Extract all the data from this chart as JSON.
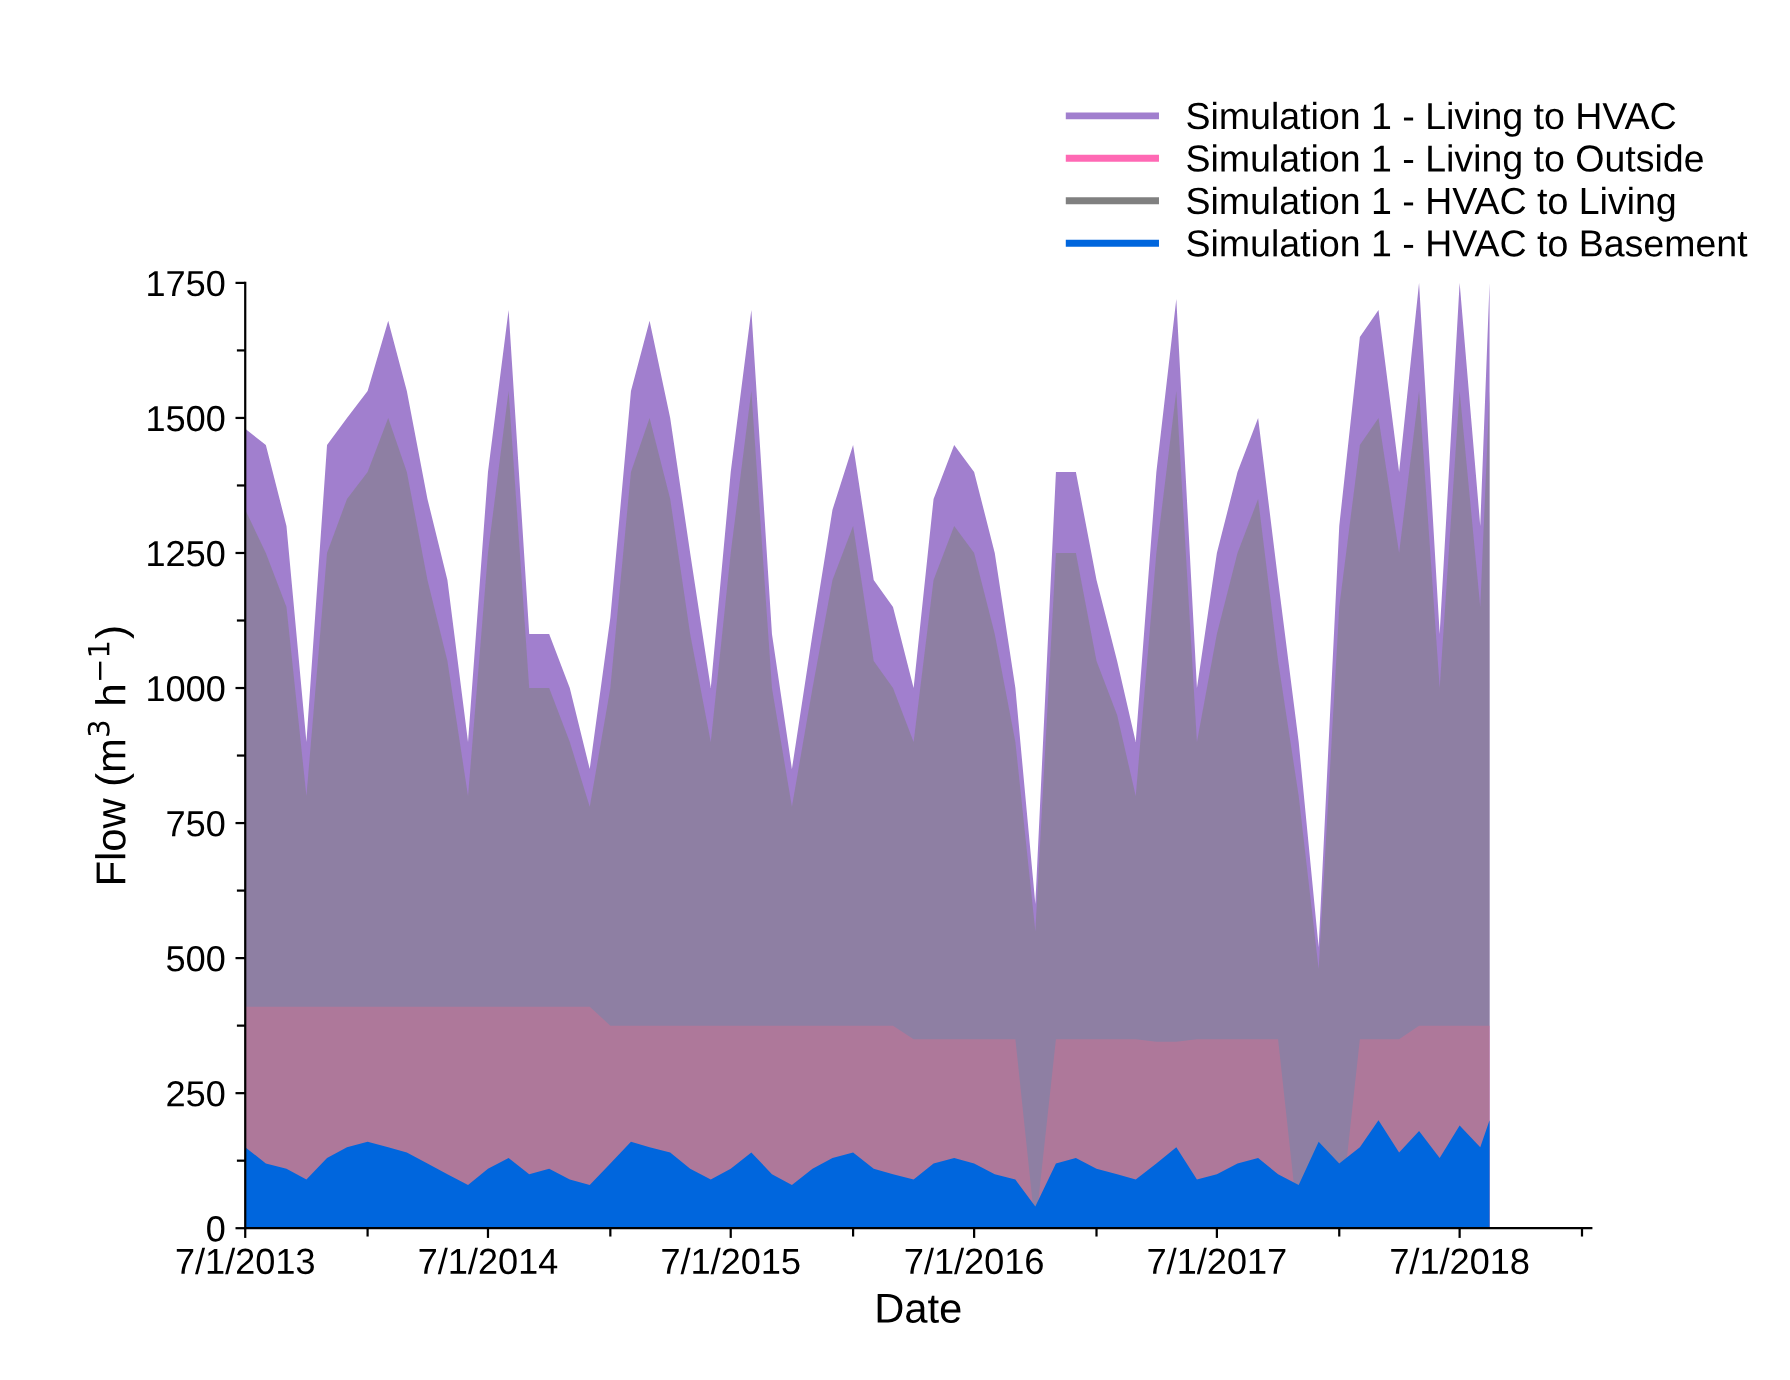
{
  "chart_data": {
    "type": "area",
    "xlabel": "Date",
    "ylabel": "Flow (m$^{3}$ h$^{−1}$)",
    "legend": "top right",
    "grid": false,
    "xlim": [
      "2013-07-01",
      "2019-01-15"
    ],
    "xticks": [
      {
        "value": "2013-07-01",
        "label": "7/1/2013"
      },
      {
        "value": "2014-01-01",
        "label": null
      },
      {
        "value": "2014-07-01",
        "label": "7/1/2014"
      },
      {
        "value": "2015-01-01",
        "label": null
      },
      {
        "value": "2015-07-01",
        "label": "7/1/2015"
      },
      {
        "value": "2016-01-01",
        "label": null
      },
      {
        "value": "2016-07-01",
        "label": "7/1/2016"
      },
      {
        "value": "2017-01-01",
        "label": null
      },
      {
        "value": "2017-07-01",
        "label": "7/1/2017"
      },
      {
        "value": "2018-01-01",
        "label": null
      },
      {
        "value": "2018-07-01",
        "label": "7/1/2018"
      },
      {
        "value": "2019-01-01",
        "label": null
      }
    ],
    "ylim": [
      0,
      1750
    ],
    "yticks": [
      0,
      {
        "value": 125,
        "label": null
      },
      250,
      {
        "value": 375,
        "label": null
      },
      500,
      {
        "value": 625,
        "label": null
      },
      750,
      {
        "value": 875,
        "label": null
      },
      1000,
      {
        "value": 1125,
        "label": null
      },
      1250,
      {
        "value": 1375,
        "label": null
      },
      1500,
      {
        "value": 1625,
        "label": null
      },
      1750
    ],
    "x": [
      "2013-07-01",
      "2013-08-01",
      "2013-09-01",
      "2013-10-01",
      "2013-11-01",
      "2013-12-01",
      "2014-01-01",
      "2014-02-01",
      "2014-03-01",
      "2014-04-01",
      "2014-05-01",
      "2014-06-01",
      "2014-07-01",
      "2014-08-01",
      "2014-09-01",
      "2014-10-01",
      "2014-11-01",
      "2014-12-01",
      "2015-01-01",
      "2015-02-01",
      "2015-03-01",
      "2015-04-01",
      "2015-05-01",
      "2015-06-01",
      "2015-07-01",
      "2015-08-01",
      "2015-09-01",
      "2015-10-01",
      "2015-11-01",
      "2015-12-01",
      "2016-01-01",
      "2016-02-01",
      "2016-03-01",
      "2016-04-01",
      "2016-05-01",
      "2016-06-01",
      "2016-07-01",
      "2016-08-01",
      "2016-09-01",
      "2016-10-01",
      "2016-11-01",
      "2016-12-01",
      "2017-01-01",
      "2017-02-01",
      "2017-03-01",
      "2017-04-01",
      "2017-05-01",
      "2017-06-01",
      "2017-07-01",
      "2017-08-01",
      "2017-09-01",
      "2017-10-01",
      "2017-11-01",
      "2017-12-01",
      "2018-01-01",
      "2018-02-01",
      "2018-03-01",
      "2018-04-01",
      "2018-05-01",
      "2018-06-01",
      "2018-07-01",
      "2018-08-01",
      "2018-08-15"
    ],
    "series": [
      {
        "name": "Simulation 1 - Living to HVAC",
        "color": "#a17fce",
        "values": [
          1480,
          1450,
          1300,
          900,
          1450,
          1500,
          1550,
          1680,
          1550,
          1350,
          1200,
          900,
          1400,
          1700,
          1100,
          1100,
          1000,
          850,
          1130,
          1550,
          1680,
          1500,
          1250,
          1000,
          1400,
          1700,
          1100,
          850,
          1100,
          1330,
          1450,
          1200,
          1150,
          1000,
          1350,
          1450,
          1400,
          1250,
          1000,
          600,
          1400,
          1400,
          1200,
          1050,
          900,
          1400,
          1720,
          1000,
          1250,
          1400,
          1500,
          1200,
          900,
          520,
          1300,
          1650,
          1700,
          1400,
          1750,
          1100,
          1750,
          1300,
          1750
        ]
      },
      {
        "name": "Simulation 1 - Living to Outside",
        "color": "#ff69b4",
        "values": [
          410,
          410,
          410,
          410,
          410,
          410,
          410,
          410,
          410,
          410,
          410,
          410,
          410,
          410,
          410,
          410,
          410,
          410,
          375,
          375,
          375,
          375,
          375,
          375,
          375,
          375,
          375,
          375,
          375,
          375,
          375,
          375,
          375,
          350,
          350,
          350,
          350,
          350,
          350,
          0,
          350,
          350,
          350,
          350,
          350,
          345,
          345,
          350,
          350,
          350,
          350,
          350,
          0,
          0,
          0,
          350,
          350,
          350,
          375,
          375,
          375,
          375,
          375
        ]
      },
      {
        "name": "Simulation 1 - HVAC to Living",
        "color": "#808080",
        "values": [
          1330,
          1250,
          1150,
          800,
          1250,
          1350,
          1400,
          1500,
          1400,
          1200,
          1050,
          800,
          1250,
          1550,
          1000,
          1000,
          900,
          780,
          1000,
          1400,
          1500,
          1350,
          1100,
          900,
          1250,
          1550,
          1000,
          780,
          1000,
          1200,
          1300,
          1050,
          1000,
          900,
          1200,
          1300,
          1250,
          1100,
          900,
          550,
          1250,
          1250,
          1050,
          950,
          800,
          1250,
          1550,
          900,
          1100,
          1250,
          1350,
          1050,
          800,
          480,
          1150,
          1450,
          1500,
          1250,
          1550,
          1000,
          1550,
          1150,
          1550
        ]
      },
      {
        "name": "Simulation 1 - HVAC to Basement",
        "color": "#0066dd",
        "values": [
          150,
          120,
          110,
          90,
          130,
          150,
          160,
          150,
          140,
          120,
          100,
          80,
          110,
          130,
          100,
          110,
          90,
          80,
          120,
          160,
          150,
          140,
          110,
          90,
          110,
          140,
          100,
          80,
          110,
          130,
          140,
          110,
          100,
          90,
          120,
          130,
          120,
          100,
          90,
          40,
          120,
          130,
          110,
          100,
          90,
          120,
          150,
          90,
          100,
          120,
          130,
          100,
          80,
          160,
          120,
          150,
          200,
          140,
          180,
          130,
          190,
          150,
          200
        ]
      }
    ]
  }
}
